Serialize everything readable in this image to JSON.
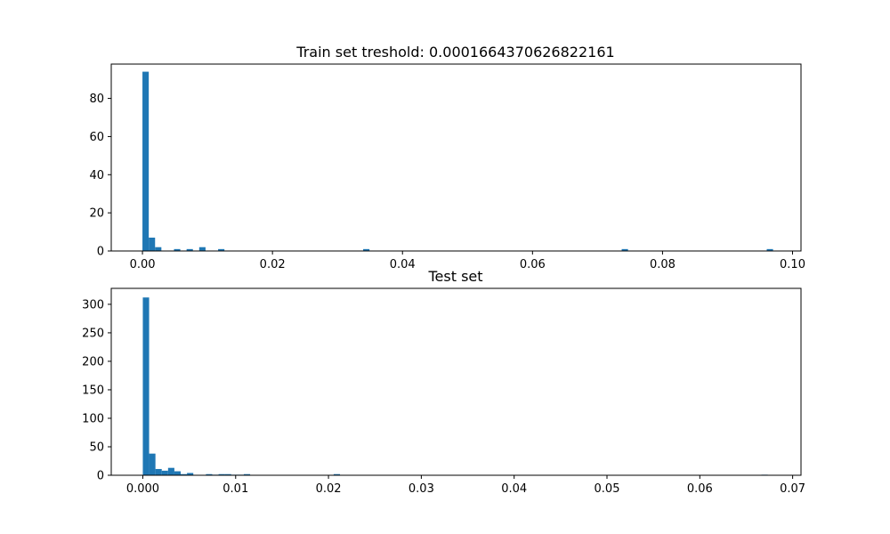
{
  "chart_data": [
    {
      "type": "bar",
      "title": "Train set treshold: 0.0001664370626822161",
      "xlabel": "",
      "ylabel": "",
      "xlim": [
        -0.0048,
        0.1013
      ],
      "ylim": [
        0,
        98
      ],
      "xticks": [
        {
          "value": 0.0,
          "label": "0.00"
        },
        {
          "value": 0.02,
          "label": "0.02"
        },
        {
          "value": 0.04,
          "label": "0.04"
        },
        {
          "value": 0.06,
          "label": "0.06"
        },
        {
          "value": 0.08,
          "label": "0.08"
        },
        {
          "value": 0.1,
          "label": "0.10"
        }
      ],
      "yticks": [
        {
          "value": 0,
          "label": "0"
        },
        {
          "value": 20,
          "label": "20"
        },
        {
          "value": 40,
          "label": "40"
        },
        {
          "value": 60,
          "label": "60"
        },
        {
          "value": 80,
          "label": "80"
        }
      ],
      "bar_color": "#1f77b4",
      "bins": [
        {
          "x0": 0.0,
          "x1": 0.00097,
          "count": 94
        },
        {
          "x0": 0.00097,
          "x1": 0.00194,
          "count": 7
        },
        {
          "x0": 0.00194,
          "x1": 0.00291,
          "count": 2
        },
        {
          "x0": 0.00485,
          "x1": 0.00582,
          "count": 1
        },
        {
          "x0": 0.00679,
          "x1": 0.00776,
          "count": 1
        },
        {
          "x0": 0.00873,
          "x1": 0.0097,
          "count": 2
        },
        {
          "x0": 0.01164,
          "x1": 0.01261,
          "count": 1
        },
        {
          "x0": 0.03395,
          "x1": 0.03492,
          "count": 1
        },
        {
          "x0": 0.07372,
          "x1": 0.07469,
          "count": 1
        },
        {
          "x0": 0.09603,
          "x1": 0.097,
          "count": 1
        }
      ]
    },
    {
      "type": "bar",
      "title": "Test set",
      "xlabel": "",
      "ylabel": "",
      "xlim": [
        -0.0034,
        0.0709
      ],
      "ylim": [
        0,
        328
      ],
      "xticks": [
        {
          "value": 0.0,
          "label": "0.000"
        },
        {
          "value": 0.01,
          "label": "0.01"
        },
        {
          "value": 0.02,
          "label": "0.02"
        },
        {
          "value": 0.03,
          "label": "0.03"
        },
        {
          "value": 0.04,
          "label": "0.04"
        },
        {
          "value": 0.05,
          "label": "0.05"
        },
        {
          "value": 0.06,
          "label": "0.06"
        },
        {
          "value": 0.07,
          "label": "0.07"
        }
      ],
      "yticks": [
        {
          "value": 0,
          "label": "0"
        },
        {
          "value": 50,
          "label": "50"
        },
        {
          "value": 100,
          "label": "100"
        },
        {
          "value": 150,
          "label": "150"
        },
        {
          "value": 200,
          "label": "200"
        },
        {
          "value": 250,
          "label": "250"
        },
        {
          "value": 300,
          "label": "300"
        }
      ],
      "bar_color": "#1f77b4",
      "bins": [
        {
          "x0": 0.0,
          "x1": 0.00068,
          "count": 312
        },
        {
          "x0": 0.00068,
          "x1": 0.00136,
          "count": 38
        },
        {
          "x0": 0.00136,
          "x1": 0.00204,
          "count": 11
        },
        {
          "x0": 0.00204,
          "x1": 0.00272,
          "count": 8
        },
        {
          "x0": 0.00272,
          "x1": 0.0034,
          "count": 13
        },
        {
          "x0": 0.0034,
          "x1": 0.00408,
          "count": 7
        },
        {
          "x0": 0.00408,
          "x1": 0.00476,
          "count": 2
        },
        {
          "x0": 0.00476,
          "x1": 0.00544,
          "count": 4
        },
        {
          "x0": 0.0068,
          "x1": 0.00748,
          "count": 2
        },
        {
          "x0": 0.00748,
          "x1": 0.00816,
          "count": 1
        },
        {
          "x0": 0.00816,
          "x1": 0.00884,
          "count": 2
        },
        {
          "x0": 0.00884,
          "x1": 0.00952,
          "count": 2
        },
        {
          "x0": 0.00952,
          "x1": 0.0102,
          "count": 1
        },
        {
          "x0": 0.0102,
          "x1": 0.01088,
          "count": 1
        },
        {
          "x0": 0.01088,
          "x1": 0.01156,
          "count": 2
        },
        {
          "x0": 0.02056,
          "x1": 0.02124,
          "count": 2
        },
        {
          "x0": 0.06664,
          "x1": 0.06732,
          "count": 1
        }
      ]
    }
  ]
}
